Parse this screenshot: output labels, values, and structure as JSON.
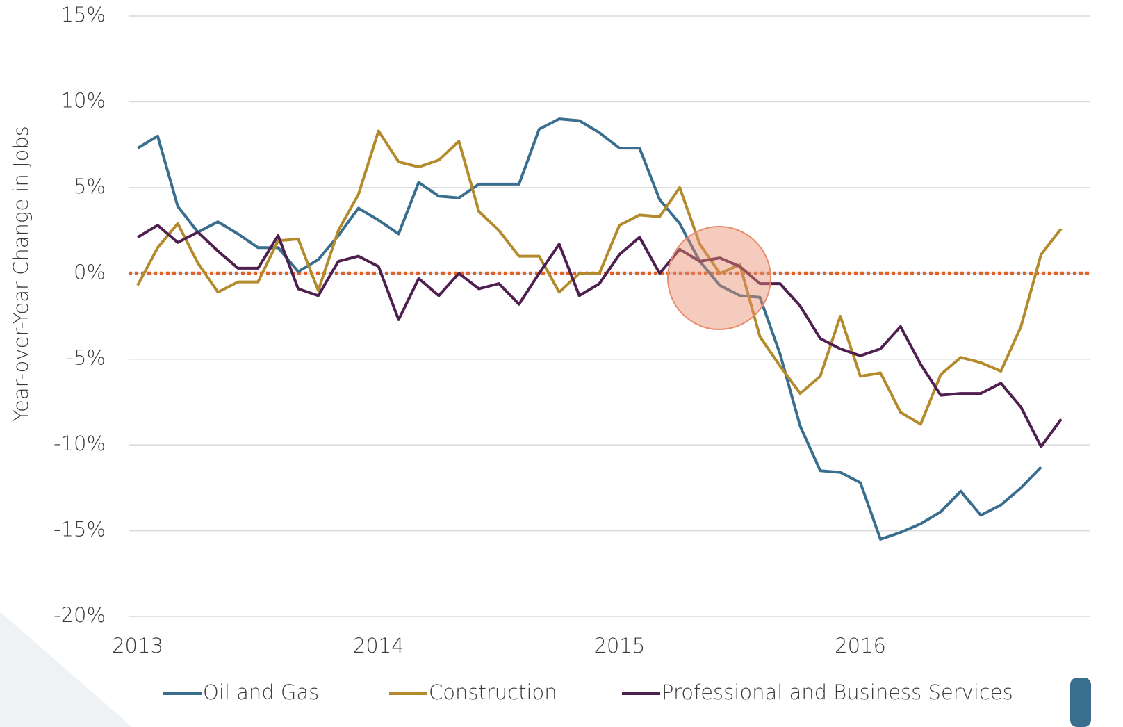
{
  "chart_data": {
    "type": "line",
    "y_label": "Year-over-Year Change in Jobs",
    "categories": [
      "2013",
      null,
      null,
      null,
      null,
      null,
      null,
      null,
      null,
      null,
      null,
      null,
      "2014",
      null,
      null,
      null,
      null,
      null,
      null,
      null,
      null,
      null,
      null,
      null,
      "2015",
      null,
      null,
      null,
      null,
      null,
      null,
      null,
      null,
      null,
      null,
      null,
      "2016",
      null,
      null,
      null,
      null,
      null,
      null,
      null,
      null,
      null,
      null
    ],
    "series": [
      {
        "name": "Oil and Gas",
        "color": "#3a6e8f",
        "values": [
          7.3,
          8.0,
          3.9,
          2.4,
          3.0,
          2.3,
          1.5,
          1.5,
          0.1,
          0.8,
          2.2,
          3.8,
          3.1,
          2.3,
          5.3,
          4.5,
          4.4,
          5.2,
          5.2,
          5.2,
          8.4,
          9.0,
          8.9,
          8.2,
          7.3,
          7.3,
          4.3,
          2.9,
          0.7,
          -0.7,
          -1.3,
          -1.4,
          -4.7,
          -8.9,
          -11.5,
          -11.6,
          -12.2,
          -15.5,
          -15.1,
          -14.6,
          -13.9,
          -12.7,
          -14.1,
          -13.5,
          -12.5,
          -11.3,
          null
        ]
      },
      {
        "name": "Construction",
        "color": "#b38a2c",
        "values": [
          -0.7,
          1.5,
          2.9,
          0.6,
          -1.1,
          -0.5,
          -0.5,
          1.9,
          2.0,
          -1.0,
          2.5,
          4.6,
          8.3,
          6.5,
          6.2,
          6.6,
          7.7,
          3.6,
          2.5,
          1.0,
          1.0,
          -1.1,
          0.0,
          0.0,
          2.8,
          3.4,
          3.3,
          5.0,
          1.7,
          0.0,
          0.5,
          -3.7,
          -5.4,
          -7.0,
          -6.0,
          -2.5,
          -6.0,
          -5.8,
          -8.1,
          -8.8,
          -5.9,
          -4.9,
          -5.2,
          -5.7,
          -3.1,
          1.1,
          2.6
        ]
      },
      {
        "name": "Professional and Business Services",
        "color": "#4e1f4f",
        "values": [
          2.1,
          2.8,
          1.8,
          2.4,
          1.3,
          0.3,
          0.3,
          2.2,
          -0.9,
          -1.3,
          0.7,
          1.0,
          0.4,
          -2.7,
          -0.3,
          -1.3,
          0.0,
          -0.9,
          -0.6,
          -1.8,
          0.0,
          1.7,
          -1.3,
          -0.6,
          1.1,
          2.1,
          0.0,
          1.4,
          0.7,
          0.9,
          0.4,
          -0.6,
          -0.6,
          -1.9,
          -3.8,
          -4.4,
          -4.8,
          -4.4,
          -3.1,
          -5.3,
          -7.1,
          -7.0,
          -7.0,
          -6.4,
          -7.8,
          -10.1,
          -8.5
        ]
      }
    ],
    "ylim": [
      -20,
      15
    ],
    "yticks": [
      {
        "value": -20,
        "label": "-20%"
      },
      {
        "value": -15,
        "label": "-15%"
      },
      {
        "value": -10,
        "label": "-10%"
      },
      {
        "value": -5,
        "label": "-5%"
      },
      {
        "value": 0,
        "label": "0%"
      },
      {
        "value": 5,
        "label": "5%"
      },
      {
        "value": 10,
        "label": "10%"
      },
      {
        "value": 15,
        "label": "15%"
      }
    ],
    "grid": true,
    "zero_line_color": "#e0622b",
    "legend": "bottom"
  }
}
